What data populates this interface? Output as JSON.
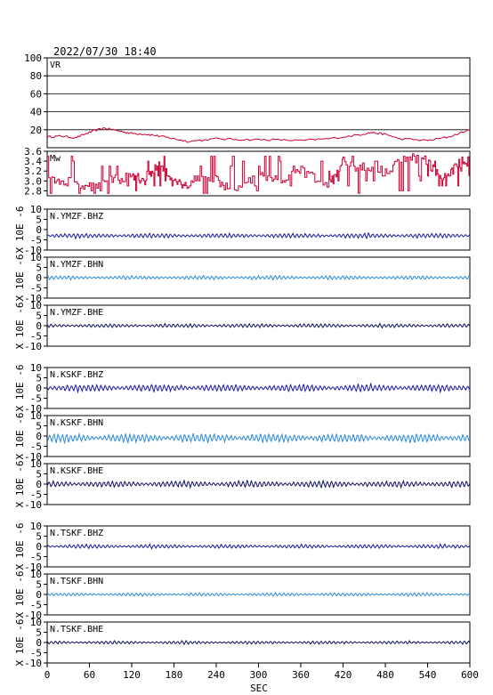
{
  "header": {
    "datetime": "2022/07/30 18:40"
  },
  "x_axis": {
    "label": "SEC",
    "range": [
      0,
      600
    ],
    "ticks": [
      "0",
      "60",
      "120",
      "180",
      "240",
      "300",
      "360",
      "420",
      "480",
      "540",
      "600"
    ]
  },
  "chart_data": [
    {
      "type": "line",
      "name": "VR",
      "color": "#cc0033",
      "ylim": [
        0,
        100
      ],
      "yticks": [
        "100",
        "80",
        "60",
        "40",
        "20"
      ],
      "grid": true,
      "x": [
        0,
        20,
        40,
        60,
        80,
        100,
        120,
        140,
        160,
        180,
        200,
        240,
        280,
        320,
        360,
        400,
        440,
        460,
        480,
        500,
        540,
        570,
        600
      ],
      "y": [
        12,
        13,
        11,
        17,
        22,
        19,
        16,
        15,
        13,
        10,
        7,
        10,
        9,
        9,
        8,
        10,
        14,
        17,
        15,
        10,
        8,
        12,
        20
      ]
    },
    {
      "type": "line",
      "name": "Mw",
      "color": "#cc0033",
      "ylim": [
        2.7,
        3.6
      ],
      "yticks": [
        "3.6",
        "3.4",
        "3.2",
        "3.0",
        "2.8"
      ],
      "x": [
        0,
        30,
        60,
        90,
        120,
        140,
        160,
        180,
        200,
        230,
        260,
        300,
        330,
        360,
        400,
        420,
        450,
        480,
        510,
        540,
        560,
        580,
        600
      ],
      "y": [
        3.0,
        3.0,
        2.9,
        3.0,
        3.1,
        3.0,
        3.4,
        3.0,
        2.9,
        3.1,
        2.8,
        3.1,
        3.0,
        3.2,
        2.9,
        3.4,
        3.3,
        3.2,
        3.5,
        3.4,
        3.0,
        3.3,
        3.5
      ]
    }
  ],
  "waveform_axis": {
    "ylabel": "X 10E -6",
    "ylim": [
      -10,
      10
    ],
    "yticks": [
      "10",
      "5",
      "0",
      "-5",
      "-10"
    ]
  },
  "waveforms": [
    {
      "name": "N.YMZF.BHZ",
      "color": "#1a1aa0",
      "offset": -3,
      "amplitude": 0.6
    },
    {
      "name": "N.YMZF.BHN",
      "color": "#2a8ad8",
      "offset": 0,
      "amplitude": 0.5
    },
    {
      "name": "N.YMZF.BHE",
      "color": "#101060",
      "offset": 0,
      "amplitude": 0.5
    },
    {
      "name": "N.KSKF.BHZ",
      "color": "#1a1aa0",
      "offset": 0,
      "amplitude": 0.9
    },
    {
      "name": "N.KSKF.BHN",
      "color": "#2a8ad8",
      "offset": -1,
      "amplitude": 1.1
    },
    {
      "name": "N.KSKF.BHE",
      "color": "#101060",
      "offset": 0,
      "amplitude": 0.8
    },
    {
      "name": "N.TSKF.BHZ",
      "color": "#1a1aa0",
      "offset": 0,
      "amplitude": 0.5
    },
    {
      "name": "N.TSKF.BHN",
      "color": "#2a8ad8",
      "offset": 0,
      "amplitude": 0.4
    },
    {
      "name": "N.TSKF.BHE",
      "color": "#101060",
      "offset": 0,
      "amplitude": 0.4
    }
  ]
}
